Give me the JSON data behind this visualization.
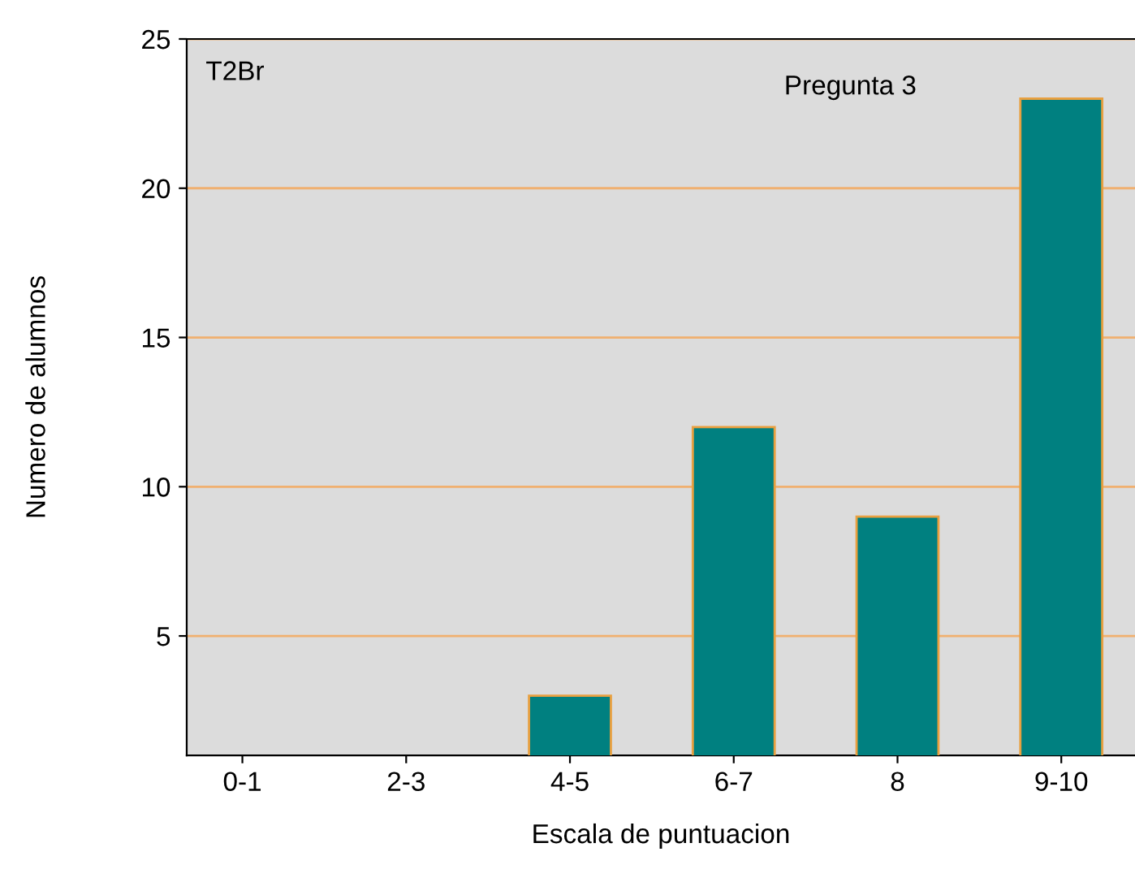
{
  "chart_data": {
    "type": "bar",
    "xlabel": "Escala de puntuacion",
    "ylabel": "Numero de alumnos",
    "categories": [
      "0-1",
      "2-3",
      "4-5",
      "6-7",
      "8",
      "9-10"
    ],
    "values": [
      null,
      null,
      3,
      12,
      9,
      23
    ],
    "color": "#008080",
    "ylim": [
      1,
      25
    ],
    "yticks": [
      5,
      10,
      15,
      20,
      25
    ],
    "grid": "y",
    "annotations": [
      "T2Br",
      "Pregunta 3"
    ]
  }
}
